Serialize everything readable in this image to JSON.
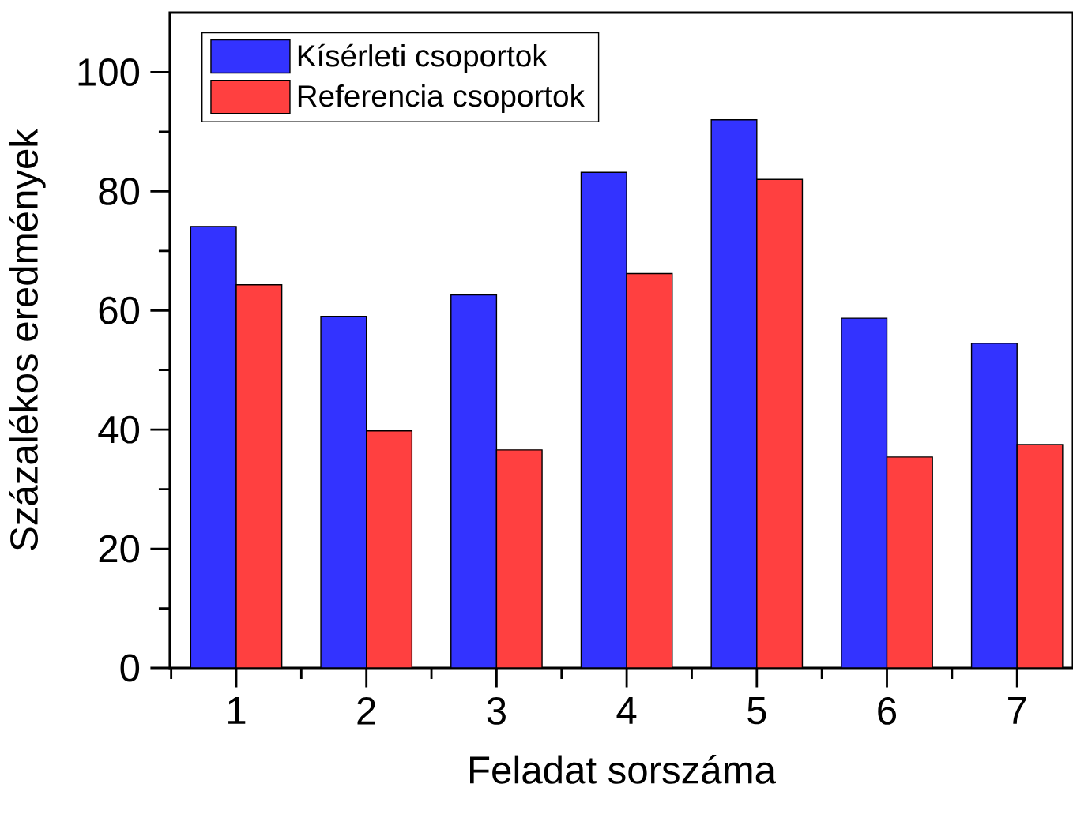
{
  "chart_data": {
    "type": "bar",
    "xlabel": "Feladat sorszáma",
    "ylabel": "Százalékos eredmények",
    "categories": [
      "1",
      "2",
      "3",
      "4",
      "5",
      "6",
      "7"
    ],
    "series": [
      {
        "name": "Kísérleti csoportok",
        "color": "#3333ff",
        "values": [
          74.1,
          59.0,
          62.6,
          83.2,
          92.0,
          58.7,
          54.5
        ]
      },
      {
        "name": "Referencia csoportok",
        "color": "#ff4040",
        "values": [
          64.3,
          39.8,
          36.6,
          66.2,
          82.0,
          35.4,
          37.5
        ]
      }
    ],
    "ylim": [
      0,
      110
    ],
    "yticks": [
      0,
      20,
      40,
      60,
      80,
      100
    ],
    "legend": "top left",
    "grid": false
  }
}
